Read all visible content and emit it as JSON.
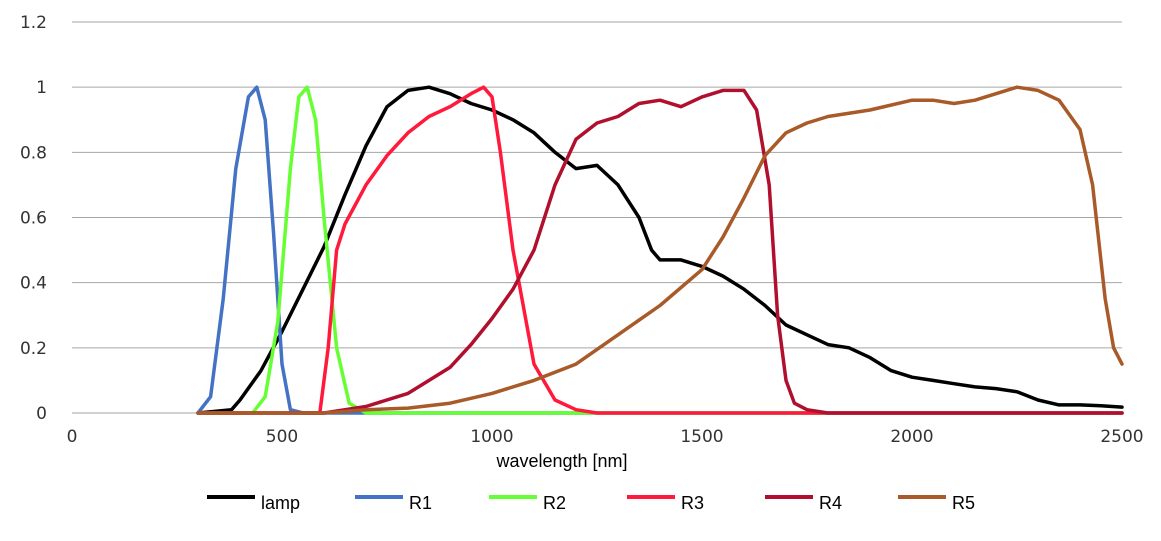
{
  "chart_data": {
    "type": "line",
    "title": "",
    "xlabel": "wavelength [nm]",
    "ylabel": "",
    "xlim": [
      0,
      2500
    ],
    "ylim": [
      0,
      1.2
    ],
    "xticks": [
      0,
      500,
      1000,
      1500,
      2000,
      2500
    ],
    "yticks": [
      0,
      0.2,
      0.4,
      0.6,
      0.8,
      1,
      1.2
    ],
    "ytick_labels": [
      "0",
      "0.2",
      "0.4",
      "0.6",
      "0.8",
      "1",
      "1.2"
    ],
    "grid": "horizontal",
    "legend_position": "bottom",
    "series": [
      {
        "name": "lamp",
        "color": "#000000",
        "x": [
          300,
          380,
          400,
          450,
          500,
          550,
          600,
          650,
          700,
          750,
          800,
          850,
          900,
          950,
          1000,
          1050,
          1100,
          1150,
          1200,
          1250,
          1300,
          1350,
          1380,
          1400,
          1450,
          1500,
          1550,
          1600,
          1650,
          1700,
          1750,
          1800,
          1850,
          1900,
          1950,
          2000,
          2050,
          2100,
          2150,
          2200,
          2250,
          2300,
          2350,
          2400,
          2450,
          2500
        ],
        "y": [
          0,
          0.01,
          0.04,
          0.13,
          0.25,
          0.38,
          0.51,
          0.67,
          0.82,
          0.94,
          0.99,
          1.0,
          0.98,
          0.95,
          0.93,
          0.9,
          0.86,
          0.8,
          0.75,
          0.76,
          0.7,
          0.6,
          0.5,
          0.47,
          0.47,
          0.45,
          0.42,
          0.38,
          0.33,
          0.27,
          0.24,
          0.21,
          0.2,
          0.17,
          0.13,
          0.11,
          0.1,
          0.09,
          0.08,
          0.075,
          0.065,
          0.04,
          0.025,
          0.025,
          0.022,
          0.018
        ]
      },
      {
        "name": "R1",
        "color": "#4472c4",
        "x": [
          300,
          330,
          360,
          390,
          420,
          440,
          460,
          480,
          500,
          520,
          550,
          2500
        ],
        "y": [
          0,
          0.05,
          0.35,
          0.75,
          0.97,
          1.0,
          0.9,
          0.55,
          0.15,
          0.01,
          0,
          0
        ]
      },
      {
        "name": "R2",
        "color": "#66ff33",
        "x": [
          300,
          430,
          460,
          490,
          520,
          540,
          560,
          580,
          600,
          630,
          660,
          700,
          2500
        ],
        "y": [
          0,
          0,
          0.05,
          0.28,
          0.75,
          0.97,
          1.0,
          0.9,
          0.6,
          0.2,
          0.03,
          0,
          0
        ]
      },
      {
        "name": "R3",
        "color": "#ff1a3c",
        "x": [
          300,
          590,
          610,
          630,
          650,
          700,
          750,
          800,
          850,
          900,
          950,
          980,
          1000,
          1020,
          1050,
          1100,
          1150,
          1200,
          1250,
          1300,
          2500
        ],
        "y": [
          0,
          0,
          0.2,
          0.5,
          0.58,
          0.7,
          0.79,
          0.86,
          0.91,
          0.94,
          0.98,
          1.0,
          0.97,
          0.8,
          0.5,
          0.15,
          0.04,
          0.01,
          0,
          0,
          0
        ]
      },
      {
        "name": "R4",
        "color": "#b0102e",
        "x": [
          300,
          600,
          700,
          800,
          900,
          950,
          1000,
          1050,
          1100,
          1150,
          1200,
          1250,
          1300,
          1350,
          1400,
          1450,
          1500,
          1550,
          1600,
          1630,
          1660,
          1680,
          1700,
          1720,
          1750,
          1800,
          2500
        ],
        "y": [
          0,
          0,
          0.02,
          0.06,
          0.14,
          0.21,
          0.29,
          0.38,
          0.5,
          0.7,
          0.84,
          0.89,
          0.91,
          0.95,
          0.96,
          0.94,
          0.97,
          0.99,
          0.99,
          0.93,
          0.7,
          0.3,
          0.1,
          0.03,
          0.01,
          0,
          0
        ]
      },
      {
        "name": "R5",
        "color": "#a85a28",
        "x": [
          300,
          600,
          700,
          800,
          900,
          1000,
          1100,
          1200,
          1300,
          1400,
          1500,
          1550,
          1600,
          1650,
          1700,
          1750,
          1800,
          1900,
          2000,
          2050,
          2100,
          2150,
          2200,
          2250,
          2300,
          2350,
          2400,
          2430,
          2460,
          2480,
          2500
        ],
        "y": [
          0,
          0,
          0.01,
          0.015,
          0.03,
          0.06,
          0.1,
          0.15,
          0.24,
          0.33,
          0.44,
          0.54,
          0.66,
          0.79,
          0.86,
          0.89,
          0.91,
          0.93,
          0.96,
          0.96,
          0.95,
          0.96,
          0.98,
          1.0,
          0.99,
          0.96,
          0.87,
          0.7,
          0.35,
          0.2,
          0.15
        ]
      }
    ]
  }
}
